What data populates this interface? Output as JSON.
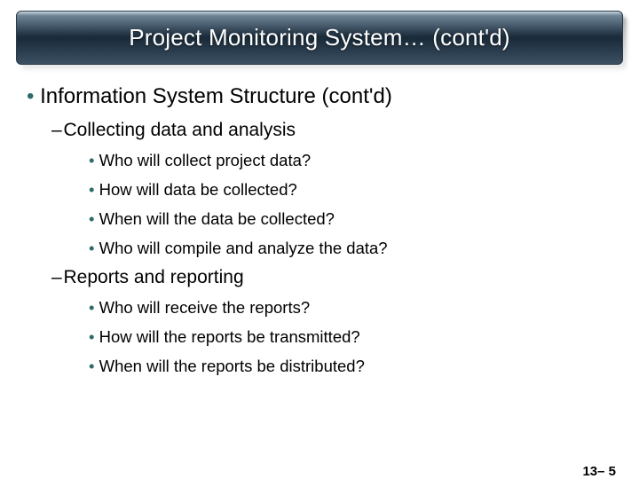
{
  "colors": {
    "body_text": "#000000",
    "bullet": "#2d6b6b",
    "title_text": "#ffffff",
    "title_grad_0": "#c7d3dd",
    "title_grad_1": "#6e8496",
    "title_grad_2": "#1b2c3c",
    "title_grad_3": "#1a2b3a",
    "title_grad_4": "#3b5062"
  },
  "title": "Project Monitoring System… (cont'd)",
  "heading": "Information System Structure (cont'd)",
  "sections": [
    {
      "label": "Collecting data and analysis",
      "items": [
        "Who will collect project data?",
        "How will data be collected?",
        "When will the data be collected?",
        "Who will compile and analyze the data?"
      ]
    },
    {
      "label": "Reports and reporting",
      "items": [
        "Who will receive the reports?",
        "How will the reports be transmitted?",
        "When will the reports be distributed?"
      ]
    }
  ],
  "footer": "13– 5"
}
